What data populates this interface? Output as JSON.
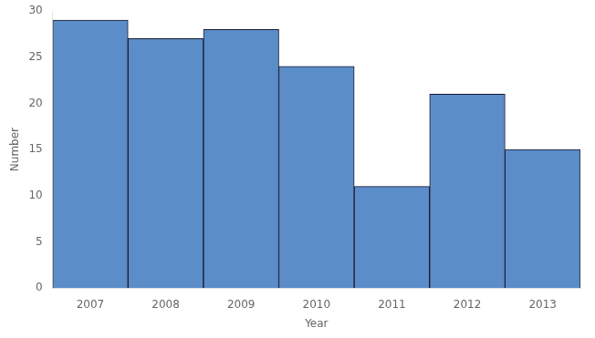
{
  "chart_data": {
    "type": "bar",
    "categories": [
      "2007",
      "2008",
      "2009",
      "2010",
      "2011",
      "2012",
      "2013"
    ],
    "values": [
      29,
      27,
      28,
      24,
      11,
      21,
      15
    ],
    "color": "#5b8dc8",
    "xlabel": "Year",
    "ylabel": "Number",
    "ylim": [
      0,
      30
    ],
    "yticks": [
      0,
      5,
      10,
      15,
      20,
      25,
      30
    ],
    "grid": false
  }
}
